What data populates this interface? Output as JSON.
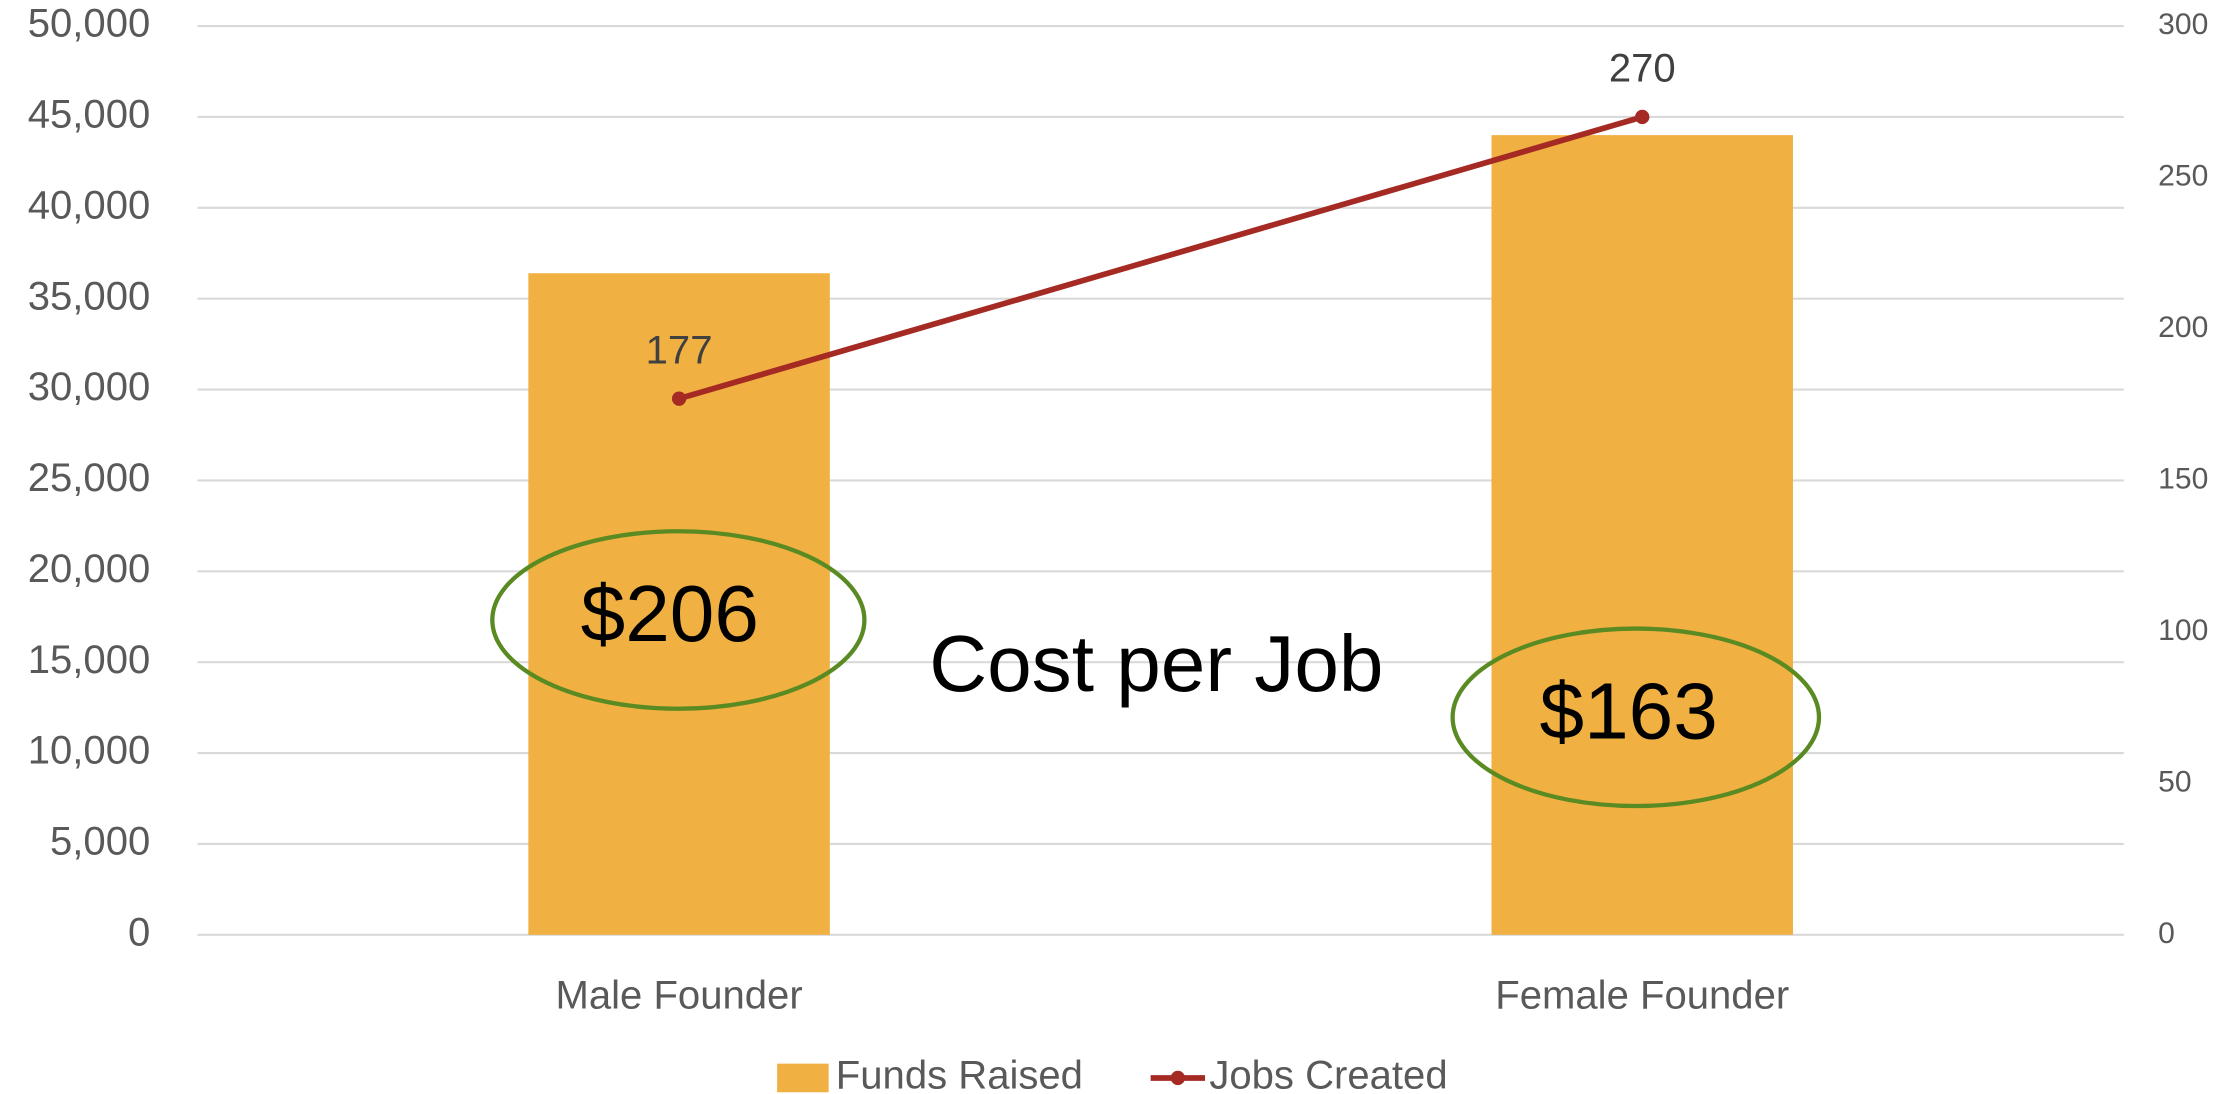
{
  "chart_data": {
    "type": "combo",
    "categories": [
      "Male Founder",
      "Female Founder"
    ],
    "series": [
      {
        "name": "Funds Raised",
        "color": "#f0b042",
        "values": [
          36400,
          44000
        ]
      },
      {
        "name": "Jobs Created",
        "color": "#a52a24",
        "values": [
          177,
          270
        ],
        "axis": "y2"
      }
    ],
    "ylim": [
      0,
      50000
    ],
    "yticks": [
      0,
      {
        "value": 5000,
        "label": "5,000"
      },
      {
        "value": 10000,
        "label": "10,000"
      },
      {
        "value": 15000,
        "label": "15,000"
      },
      {
        "value": 20000,
        "label": "20,000"
      },
      {
        "value": 25000,
        "label": "25,000"
      },
      {
        "value": 30000,
        "label": "30,000"
      },
      {
        "value": 35000,
        "label": "35,000"
      },
      {
        "value": 40000,
        "label": "40,000"
      },
      {
        "value": 45000,
        "label": "45,000"
      },
      {
        "value": 50000,
        "label": "50,000"
      }
    ],
    "y2lim": [
      0,
      300
    ],
    "y2ticks": [
      0,
      50,
      100,
      150,
      200,
      250,
      300
    ],
    "grid": true,
    "legend": "bottom",
    "annotations": [
      "$206",
      "Cost per Job",
      "$163"
    ]
  }
}
